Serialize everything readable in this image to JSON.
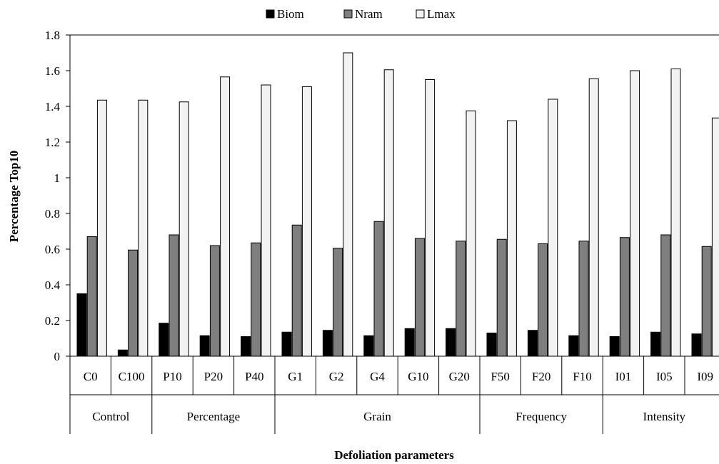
{
  "chart_data": {
    "type": "bar",
    "title": "",
    "xlabel": "Defoliation parameters",
    "ylabel": "Percentage Top10",
    "ylim": [
      0,
      1.8
    ],
    "yticks": [
      "0",
      "0.2",
      "0.4",
      "0.6",
      "0.8",
      "1",
      "1.2",
      "1.4",
      "1.6",
      "1.8"
    ],
    "legend_position": "top",
    "grid": false,
    "categories": [
      "C0",
      "C100",
      "P10",
      "P20",
      "P40",
      "G1",
      "G2",
      "G4",
      "G10",
      "G20",
      "F50",
      "F20",
      "F10",
      "I01",
      "I05",
      "I09"
    ],
    "groups": [
      {
        "label": "Control",
        "count": 2
      },
      {
        "label": "Percentage",
        "count": 3
      },
      {
        "label": "Grain",
        "count": 5
      },
      {
        "label": "Frequency",
        "count": 3
      },
      {
        "label": "Intensity",
        "count": 3
      }
    ],
    "series": [
      {
        "name": "Biom",
        "color": "#000000",
        "values": [
          0.35,
          0.035,
          0.185,
          0.115,
          0.11,
          0.135,
          0.145,
          0.115,
          0.155,
          0.155,
          0.13,
          0.145,
          0.115,
          0.11,
          0.135,
          0.125
        ]
      },
      {
        "name": "Nram",
        "color": "#7f7f7f",
        "values": [
          0.67,
          0.595,
          0.68,
          0.62,
          0.635,
          0.735,
          0.605,
          0.755,
          0.66,
          0.645,
          0.655,
          0.63,
          0.645,
          0.665,
          0.68,
          0.615
        ]
      },
      {
        "name": "Lmax",
        "color": "#f2f2f2",
        "values": [
          1.435,
          1.435,
          1.425,
          1.565,
          1.52,
          1.51,
          1.7,
          1.605,
          1.55,
          1.375,
          1.32,
          1.44,
          1.555,
          1.6,
          1.61,
          1.335
        ]
      }
    ]
  }
}
